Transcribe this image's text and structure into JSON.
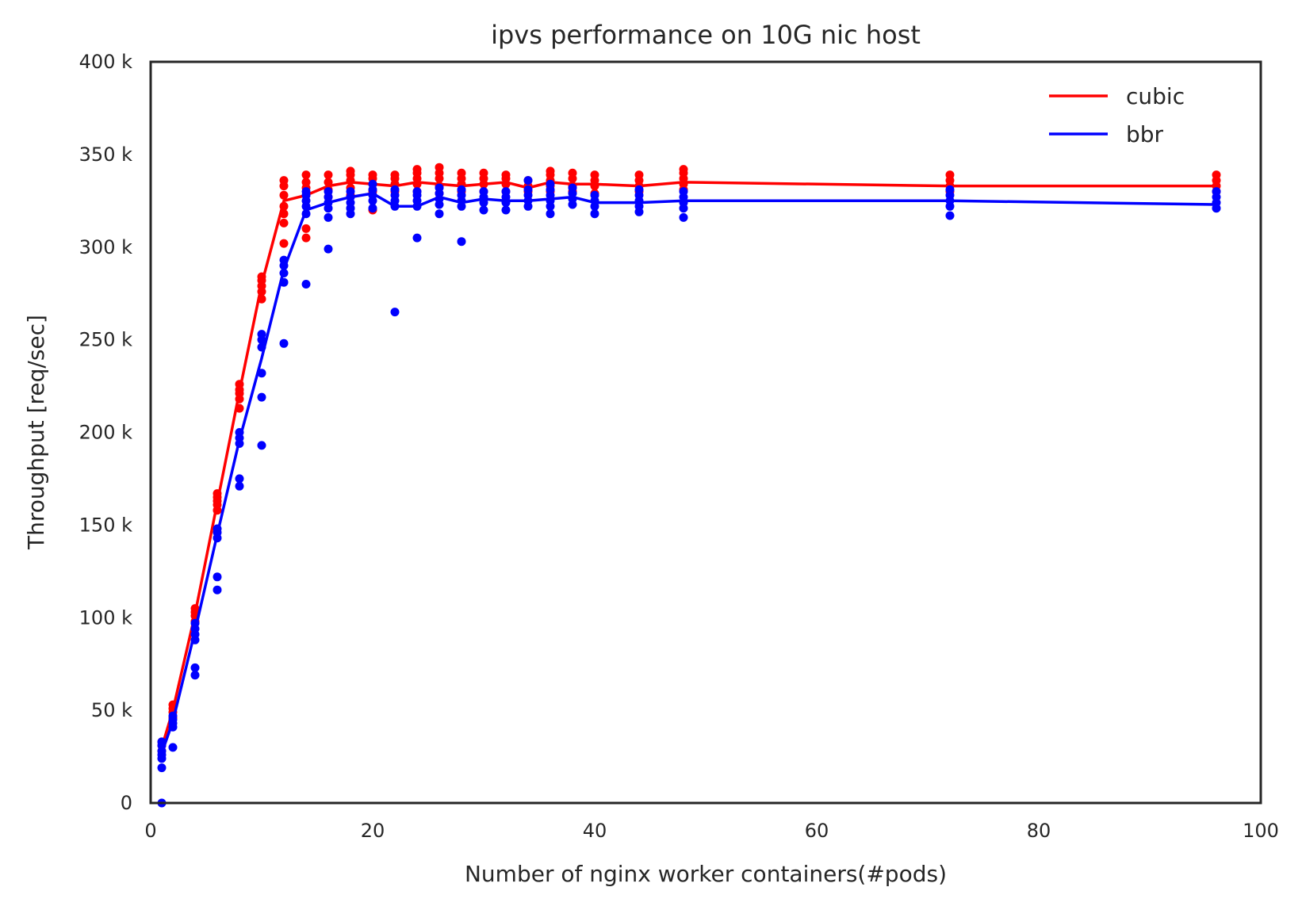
{
  "chart_data": {
    "type": "line",
    "title": "ipvs performance on 10G nic host",
    "xlabel": "Number of nginx worker containers(#pods)",
    "ylabel": "Throughput [req/sec]",
    "xlim": [
      0,
      100
    ],
    "ylim": [
      0,
      400000
    ],
    "xticks": [
      0,
      20,
      40,
      60,
      80,
      100
    ],
    "xtick_labels": [
      "0",
      "20",
      "40",
      "60",
      "80",
      "100"
    ],
    "yticks": [
      0,
      50000,
      100000,
      150000,
      200000,
      250000,
      300000,
      350000,
      400000
    ],
    "ytick_labels": [
      "0",
      "50 k",
      "100 k",
      "150 k",
      "200 k",
      "250 k",
      "300 k",
      "350 k",
      "400 k"
    ],
    "grid": false,
    "legend_position": "top-right",
    "series": [
      {
        "name": "cubic",
        "color": "#ff0000",
        "line": [
          [
            1,
            30000
          ],
          [
            2,
            50000
          ],
          [
            4,
            102000
          ],
          [
            6,
            162000
          ],
          [
            8,
            222000
          ],
          [
            10,
            280000
          ],
          [
            12,
            325000
          ],
          [
            14,
            328000
          ],
          [
            16,
            333000
          ],
          [
            18,
            335000
          ],
          [
            20,
            334000
          ],
          [
            22,
            333000
          ],
          [
            24,
            335000
          ],
          [
            26,
            334000
          ],
          [
            28,
            333000
          ],
          [
            30,
            334000
          ],
          [
            32,
            335000
          ],
          [
            34,
            332000
          ],
          [
            36,
            335000
          ],
          [
            38,
            334000
          ],
          [
            40,
            334000
          ],
          [
            44,
            333000
          ],
          [
            48,
            335000
          ],
          [
            72,
            333000
          ],
          [
            96,
            333000
          ]
        ],
        "points": [
          [
            1,
            28000
          ],
          [
            1,
            31000
          ],
          [
            1,
            33000
          ],
          [
            2,
            46000
          ],
          [
            2,
            49000
          ],
          [
            2,
            51000
          ],
          [
            2,
            53000
          ],
          [
            4,
            98000
          ],
          [
            4,
            101000
          ],
          [
            4,
            103000
          ],
          [
            4,
            105000
          ],
          [
            6,
            158000
          ],
          [
            6,
            161000
          ],
          [
            6,
            163000
          ],
          [
            6,
            165000
          ],
          [
            6,
            167000
          ],
          [
            8,
            213000
          ],
          [
            8,
            218000
          ],
          [
            8,
            221000
          ],
          [
            8,
            223000
          ],
          [
            8,
            226000
          ],
          [
            10,
            272000
          ],
          [
            10,
            276000
          ],
          [
            10,
            279000
          ],
          [
            10,
            282000
          ],
          [
            10,
            284000
          ],
          [
            12,
            302000
          ],
          [
            12,
            313000
          ],
          [
            12,
            318000
          ],
          [
            12,
            322000
          ],
          [
            12,
            328000
          ],
          [
            12,
            333000
          ],
          [
            12,
            336000
          ],
          [
            14,
            305000
          ],
          [
            14,
            310000
          ],
          [
            14,
            328000
          ],
          [
            14,
            332000
          ],
          [
            14,
            335000
          ],
          [
            14,
            339000
          ],
          [
            16,
            327000
          ],
          [
            16,
            331000
          ],
          [
            16,
            335000
          ],
          [
            16,
            339000
          ],
          [
            18,
            328000
          ],
          [
            18,
            332000
          ],
          [
            18,
            336000
          ],
          [
            18,
            339000
          ],
          [
            18,
            341000
          ],
          [
            20,
            320000
          ],
          [
            20,
            330000
          ],
          [
            20,
            334000
          ],
          [
            20,
            337000
          ],
          [
            20,
            339000
          ],
          [
            22,
            330000
          ],
          [
            22,
            334000
          ],
          [
            22,
            337000
          ],
          [
            22,
            339000
          ],
          [
            24,
            330000
          ],
          [
            24,
            334000
          ],
          [
            24,
            337000
          ],
          [
            24,
            340000
          ],
          [
            24,
            342000
          ],
          [
            26,
            329000
          ],
          [
            26,
            333000
          ],
          [
            26,
            337000
          ],
          [
            26,
            340000
          ],
          [
            26,
            343000
          ],
          [
            28,
            330000
          ],
          [
            28,
            334000
          ],
          [
            28,
            337000
          ],
          [
            28,
            340000
          ],
          [
            30,
            330000
          ],
          [
            30,
            334000
          ],
          [
            30,
            337000
          ],
          [
            30,
            340000
          ],
          [
            32,
            330000
          ],
          [
            32,
            334000
          ],
          [
            32,
            337000
          ],
          [
            32,
            339000
          ],
          [
            34,
            330000
          ],
          [
            34,
            333000
          ],
          [
            34,
            336000
          ],
          [
            36,
            330000
          ],
          [
            36,
            333000
          ],
          [
            36,
            336000
          ],
          [
            36,
            339000
          ],
          [
            36,
            341000
          ],
          [
            38,
            330000
          ],
          [
            38,
            333000
          ],
          [
            38,
            337000
          ],
          [
            38,
            340000
          ],
          [
            40,
            329000
          ],
          [
            40,
            333000
          ],
          [
            40,
            336000
          ],
          [
            40,
            339000
          ],
          [
            44,
            330000
          ],
          [
            44,
            333000
          ],
          [
            44,
            336000
          ],
          [
            44,
            339000
          ],
          [
            48,
            331000
          ],
          [
            48,
            334000
          ],
          [
            48,
            337000
          ],
          [
            48,
            340000
          ],
          [
            48,
            342000
          ],
          [
            72,
            330000
          ],
          [
            72,
            333000
          ],
          [
            72,
            336000
          ],
          [
            72,
            339000
          ],
          [
            96,
            330000
          ],
          [
            96,
            333000
          ],
          [
            96,
            336000
          ],
          [
            96,
            339000
          ]
        ]
      },
      {
        "name": "bbr",
        "color": "#0000ff",
        "line": [
          [
            1,
            27000
          ],
          [
            2,
            44000
          ],
          [
            4,
            93000
          ],
          [
            6,
            145000
          ],
          [
            8,
            196000
          ],
          [
            10,
            240000
          ],
          [
            12,
            288000
          ],
          [
            14,
            320000
          ],
          [
            16,
            324000
          ],
          [
            18,
            327000
          ],
          [
            20,
            329000
          ],
          [
            22,
            322000
          ],
          [
            24,
            322000
          ],
          [
            26,
            327000
          ],
          [
            28,
            324000
          ],
          [
            30,
            326000
          ],
          [
            32,
            325000
          ],
          [
            34,
            325000
          ],
          [
            36,
            326000
          ],
          [
            38,
            327000
          ],
          [
            40,
            324000
          ],
          [
            44,
            324000
          ],
          [
            48,
            325000
          ],
          [
            72,
            325000
          ],
          [
            96,
            323000
          ]
        ],
        "points": [
          [
            1,
            0
          ],
          [
            1,
            19000
          ],
          [
            1,
            24000
          ],
          [
            1,
            26000
          ],
          [
            1,
            28000
          ],
          [
            1,
            31000
          ],
          [
            1,
            33000
          ],
          [
            2,
            30000
          ],
          [
            2,
            41000
          ],
          [
            2,
            43000
          ],
          [
            2,
            45000
          ],
          [
            2,
            47000
          ],
          [
            4,
            69000
          ],
          [
            4,
            73000
          ],
          [
            4,
            88000
          ],
          [
            4,
            91000
          ],
          [
            4,
            94000
          ],
          [
            4,
            97000
          ],
          [
            6,
            115000
          ],
          [
            6,
            122000
          ],
          [
            6,
            143000
          ],
          [
            6,
            146000
          ],
          [
            6,
            148000
          ],
          [
            8,
            171000
          ],
          [
            8,
            175000
          ],
          [
            8,
            194000
          ],
          [
            8,
            197000
          ],
          [
            8,
            200000
          ],
          [
            10,
            193000
          ],
          [
            10,
            219000
          ],
          [
            10,
            232000
          ],
          [
            10,
            246000
          ],
          [
            10,
            250000
          ],
          [
            10,
            253000
          ],
          [
            12,
            248000
          ],
          [
            12,
            281000
          ],
          [
            12,
            286000
          ],
          [
            12,
            290000
          ],
          [
            12,
            293000
          ],
          [
            14,
            280000
          ],
          [
            14,
            318000
          ],
          [
            14,
            322000
          ],
          [
            14,
            325000
          ],
          [
            14,
            328000
          ],
          [
            14,
            330000
          ],
          [
            16,
            299000
          ],
          [
            16,
            316000
          ],
          [
            16,
            321000
          ],
          [
            16,
            324000
          ],
          [
            16,
            327000
          ],
          [
            16,
            330000
          ],
          [
            18,
            318000
          ],
          [
            18,
            321000
          ],
          [
            18,
            324000
          ],
          [
            18,
            327000
          ],
          [
            18,
            330000
          ],
          [
            20,
            321000
          ],
          [
            20,
            325000
          ],
          [
            20,
            328000
          ],
          [
            20,
            331000
          ],
          [
            20,
            334000
          ],
          [
            22,
            265000
          ],
          [
            22,
            322000
          ],
          [
            22,
            325000
          ],
          [
            22,
            328000
          ],
          [
            22,
            331000
          ],
          [
            24,
            305000
          ],
          [
            24,
            322000
          ],
          [
            24,
            325000
          ],
          [
            24,
            328000
          ],
          [
            24,
            330000
          ],
          [
            26,
            318000
          ],
          [
            26,
            323000
          ],
          [
            26,
            326000
          ],
          [
            26,
            329000
          ],
          [
            26,
            332000
          ],
          [
            28,
            303000
          ],
          [
            28,
            322000
          ],
          [
            28,
            325000
          ],
          [
            28,
            328000
          ],
          [
            28,
            331000
          ],
          [
            30,
            320000
          ],
          [
            30,
            324000
          ],
          [
            30,
            327000
          ],
          [
            30,
            330000
          ],
          [
            32,
            320000
          ],
          [
            32,
            324000
          ],
          [
            32,
            327000
          ],
          [
            32,
            330000
          ],
          [
            34,
            322000
          ],
          [
            34,
            325000
          ],
          [
            34,
            328000
          ],
          [
            34,
            331000
          ],
          [
            34,
            336000
          ],
          [
            36,
            318000
          ],
          [
            36,
            322000
          ],
          [
            36,
            325000
          ],
          [
            36,
            328000
          ],
          [
            36,
            331000
          ],
          [
            36,
            334000
          ],
          [
            38,
            323000
          ],
          [
            38,
            326000
          ],
          [
            38,
            329000
          ],
          [
            38,
            332000
          ],
          [
            40,
            318000
          ],
          [
            40,
            322000
          ],
          [
            40,
            325000
          ],
          [
            40,
            328000
          ],
          [
            44,
            319000
          ],
          [
            44,
            322000
          ],
          [
            44,
            325000
          ],
          [
            44,
            328000
          ],
          [
            44,
            331000
          ],
          [
            48,
            316000
          ],
          [
            48,
            321000
          ],
          [
            48,
            324000
          ],
          [
            48,
            327000
          ],
          [
            48,
            330000
          ],
          [
            72,
            317000
          ],
          [
            72,
            322000
          ],
          [
            72,
            325000
          ],
          [
            72,
            328000
          ],
          [
            72,
            331000
          ],
          [
            96,
            321000
          ],
          [
            96,
            324000
          ],
          [
            96,
            327000
          ],
          [
            96,
            330000
          ]
        ]
      }
    ]
  }
}
